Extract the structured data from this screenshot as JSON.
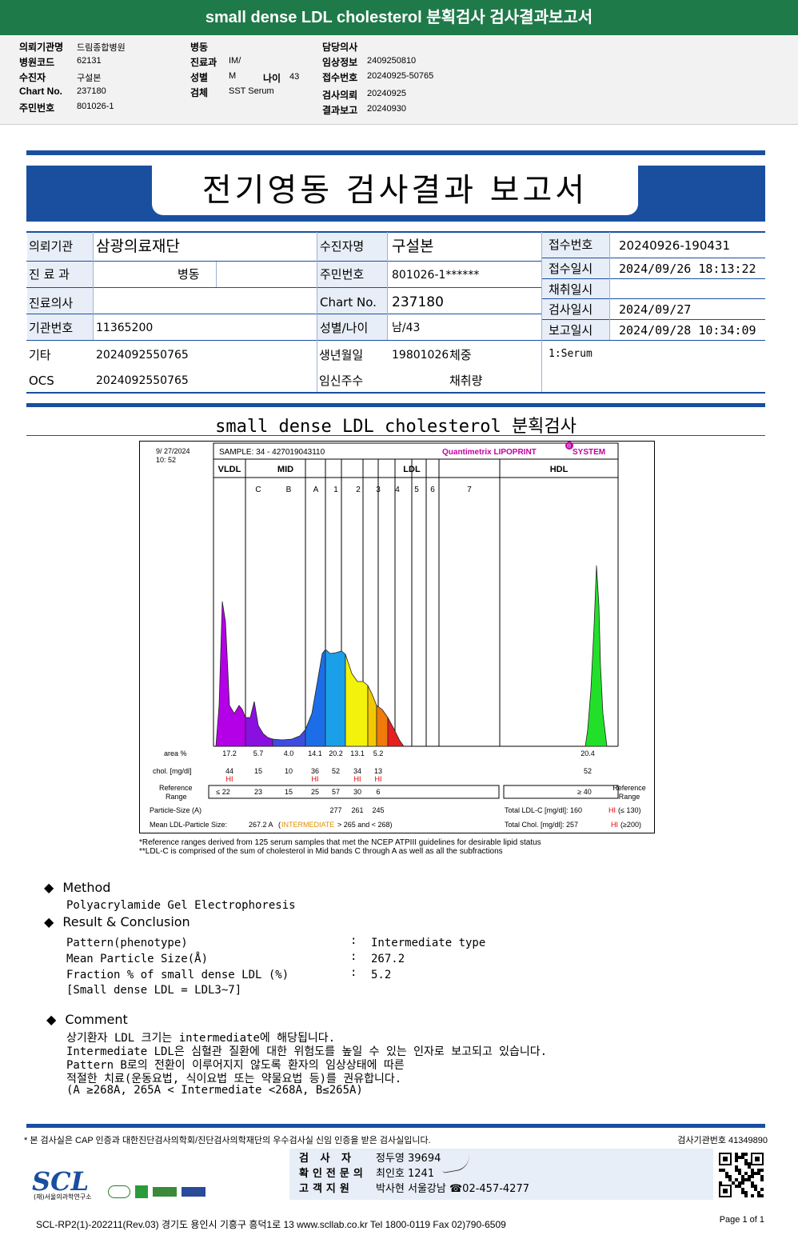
{
  "top": {
    "title": "small dense LDL cholesterol 분획검사 검사결과보고서",
    "c1": [
      [
        "의뢰기관명",
        "드림종합병원"
      ],
      [
        "병원코드",
        "62131"
      ],
      [
        "수진자",
        "구설본"
      ],
      [
        "Chart No.",
        "237180"
      ],
      [
        "주민번호",
        "801026-1"
      ]
    ],
    "c2": [
      [
        "병동",
        ""
      ],
      [
        "진료과",
        "IM/"
      ],
      [
        "성별",
        "M"
      ],
      [
        "검체",
        "SST Serum"
      ]
    ],
    "age": [
      "나이",
      "43"
    ],
    "c3": [
      [
        "담당의사",
        ""
      ],
      [
        "임상정보",
        "2409250810"
      ],
      [
        "접수번호",
        "20240925-50765"
      ],
      [
        "검사의뢰",
        "20240925"
      ],
      [
        "결과보고",
        "20240930"
      ]
    ]
  },
  "report": {
    "title": "전기영동 검사결과 보고서",
    "inst_label": "의뢰기관",
    "inst": "삼광의료재단",
    "dept_label": "진 료 과",
    "ward": "병동",
    "doctor_label": "진료의사",
    "org_label": "기관번호",
    "org": "11365200",
    "etc_label": "기타",
    "etc": "2024092550765",
    "ocs_label": "OCS",
    "ocs": "2024092550765",
    "patient_label": "수진자명",
    "patient": "구설본",
    "rrn_label": "주민번호",
    "rrn": "801026-1******",
    "chart_label": "Chart No.",
    "chart": "237180",
    "sexage_label": "성별/나이",
    "sexage": "남/43",
    "dob_label": "생년월일",
    "dob": "19801026",
    "weight_label": "체중",
    "preg_label": "임신주수",
    "vol_label": "채취량",
    "rno_label": "접수번호",
    "rno": "20240926-190431",
    "rdate_label": "접수일시",
    "rdate": "2024/09/26 18:13:22",
    "cdate_label": "채취일시",
    "tdate_label": "검사일시",
    "tdate": "2024/09/27",
    "repdate_label": "보고일시",
    "repdate": "2024/09/28 10:34:09",
    "specimen": "1:Serum"
  },
  "section_title": "small dense LDL cholesterol 분획검사",
  "chart_data": {
    "type": "area",
    "date": "9/ 27/2024",
    "time": "10: 52",
    "sample": "SAMPLE:    34 - 427019043110",
    "brand": "Quantimetrix LIPOPRINT",
    "brand_mark": "®",
    "brand_suffix": " SYSTEM",
    "groups": [
      "VLDL",
      "MID",
      "LDL",
      "HDL"
    ],
    "bands": [
      "C",
      "B",
      "A",
      "1",
      "2",
      "3",
      "4",
      "5",
      "6",
      "7"
    ],
    "row_labels": [
      "area %",
      "chol. [mg/dl]",
      "Reference",
      "Range",
      "Particle-Size (A)",
      "Mean LDL-Particle Size:"
    ],
    "area": [
      "17.2",
      "5.7",
      "4.0",
      "14.1",
      "20.2",
      "13.1",
      "5.2",
      "20.4"
    ],
    "chol": [
      "44",
      "15",
      "10",
      "36",
      "52",
      "34",
      "13",
      "52"
    ],
    "hi": [
      "HI",
      "HI",
      "HI",
      "HI"
    ],
    "ref": [
      "≤  22",
      "23",
      "15",
      "25",
      "57",
      "30",
      "6",
      "≥  40"
    ],
    "particle": [
      "277",
      "261",
      "245"
    ],
    "mean_size": "267.2  A",
    "mean_class": "INTERMEDIATE",
    "mean_range": "> 265 and < 268)",
    "mean_open": "(",
    "ldl_total": "Total LDL-C  [mg/dl]:   160",
    "ldl_hi": "HI",
    "ldl_ref": "(≤ 130)",
    "chol_total": "Total Chol. [mg/dl]:   257",
    "chol_hi": "HI",
    "chol_ref": "(≥200)",
    "ref_right": [
      "Reference",
      "Range"
    ],
    "footnote1": "*Reference ranges derived from 125 serum samples that met the NCEP ATPIII guidelines for desirable lipid status",
    "footnote2": "**LDL-C is comprised of the sum of cholesterol in Mid bands C through A as well as all the subfractions"
  },
  "method": {
    "h1": "Method",
    "m1": "Polyacrylamide Gel Electrophoresis",
    "h2": "Result & Conclusion",
    "rows": [
      [
        "Pattern(phenotype)",
        ":",
        "Intermediate type"
      ],
      [
        "Mean Particle Size(Å)",
        ":",
        "267.2"
      ],
      [
        "Fraction % of small dense LDL (%)",
        ":",
        "5.2"
      ]
    ],
    "note": "[Small dense LDL = LDL3~7]",
    "h3": "Comment",
    "comments": [
      "상기환자 LDL 크기는 intermediate에 해당됩니다.",
      "Intermediate LDL은 심혈관 질환에 대한 위험도를 높일 수 있는 인자로 보고되고 있습니다.",
      "Pattern B로의 전환이 이루어지지 않도록 환자의 임상상태에 따른",
      "적절한 치료(운동요법, 식이요법 또는 약물요법 등)를 권유합니다.",
      "(A ≥268A, 265A < Intermediate <268A, B≤265A)"
    ]
  },
  "footer": {
    "note": "* 본 검사실은 CAP 인증과 대한진단검사의학회/진단검사의학재단의 우수검사실 신임 인증을 받은 검사실입니다.",
    "lab_no": "검사기관번호  41349890",
    "staff": [
      [
        "검  사  자",
        "정두영 39694"
      ],
      [
        "확인전문의",
        "최인호 1241"
      ],
      [
        "고객지원",
        "박사현 서울강남 ☎02-457-4277"
      ]
    ],
    "logo": "SCL",
    "logo_sub": "(재)서울의과학연구소",
    "address": "SCL-RP2(1)-202211(Rev.03)  경기도 용인시 기흥구 흥덕1로 13  www.scllab.co.kr   Tel 1800-0119   Fax 02)790-6509",
    "page": "Page 1 of 1"
  }
}
